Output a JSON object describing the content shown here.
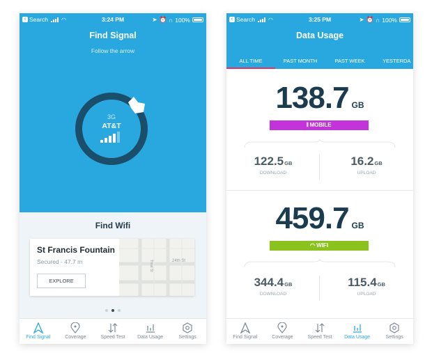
{
  "status1": {
    "back_app": "Search",
    "time": "3:24 PM",
    "battery": "100%"
  },
  "status2": {
    "back_app": "Search",
    "time": "3:25 PM",
    "battery": "100%"
  },
  "find_signal": {
    "title": "Find Signal",
    "subtitle": "Follow the arrow",
    "network": "3G",
    "carrier": "AT&T",
    "signal_bars_strength": 3
  },
  "find_wifi": {
    "title": "Find Wifi",
    "card": {
      "place": "St Francis Fountain",
      "meta": "Secured - 47.7 m",
      "button": "EXPLORE",
      "map_street_1": "24th St",
      "map_street_2": "Treat St"
    }
  },
  "tabs": [
    "Find Signal",
    "Coverage",
    "Speed Test",
    "Data Usage",
    "Settings"
  ],
  "data_usage": {
    "title": "Data Usage",
    "filters": [
      "ALL TIME",
      "PAST MONTH",
      "PAST WEEK",
      "YESTERDA"
    ],
    "mobile": {
      "total": "138.7",
      "unit": "GB",
      "label": "MOBILE",
      "download": "122.5",
      "upload": "16.2",
      "download_label": "DOWNLOAD",
      "upload_label": "UPLOAD",
      "sub_unit": "GB"
    },
    "wifi": {
      "total": "459.7",
      "unit": "GB",
      "label": "WIFI",
      "download": "344.4",
      "upload": "115.4",
      "download_label": "DOWNLOAD",
      "upload_label": "UPLOAD",
      "sub_unit": "GB"
    }
  },
  "colors": {
    "accent": "#29a8e0",
    "ring": "#1b4e6b",
    "mobile": "#c233d9",
    "wifi": "#8cc21e",
    "active_filter": "#e5345e"
  }
}
